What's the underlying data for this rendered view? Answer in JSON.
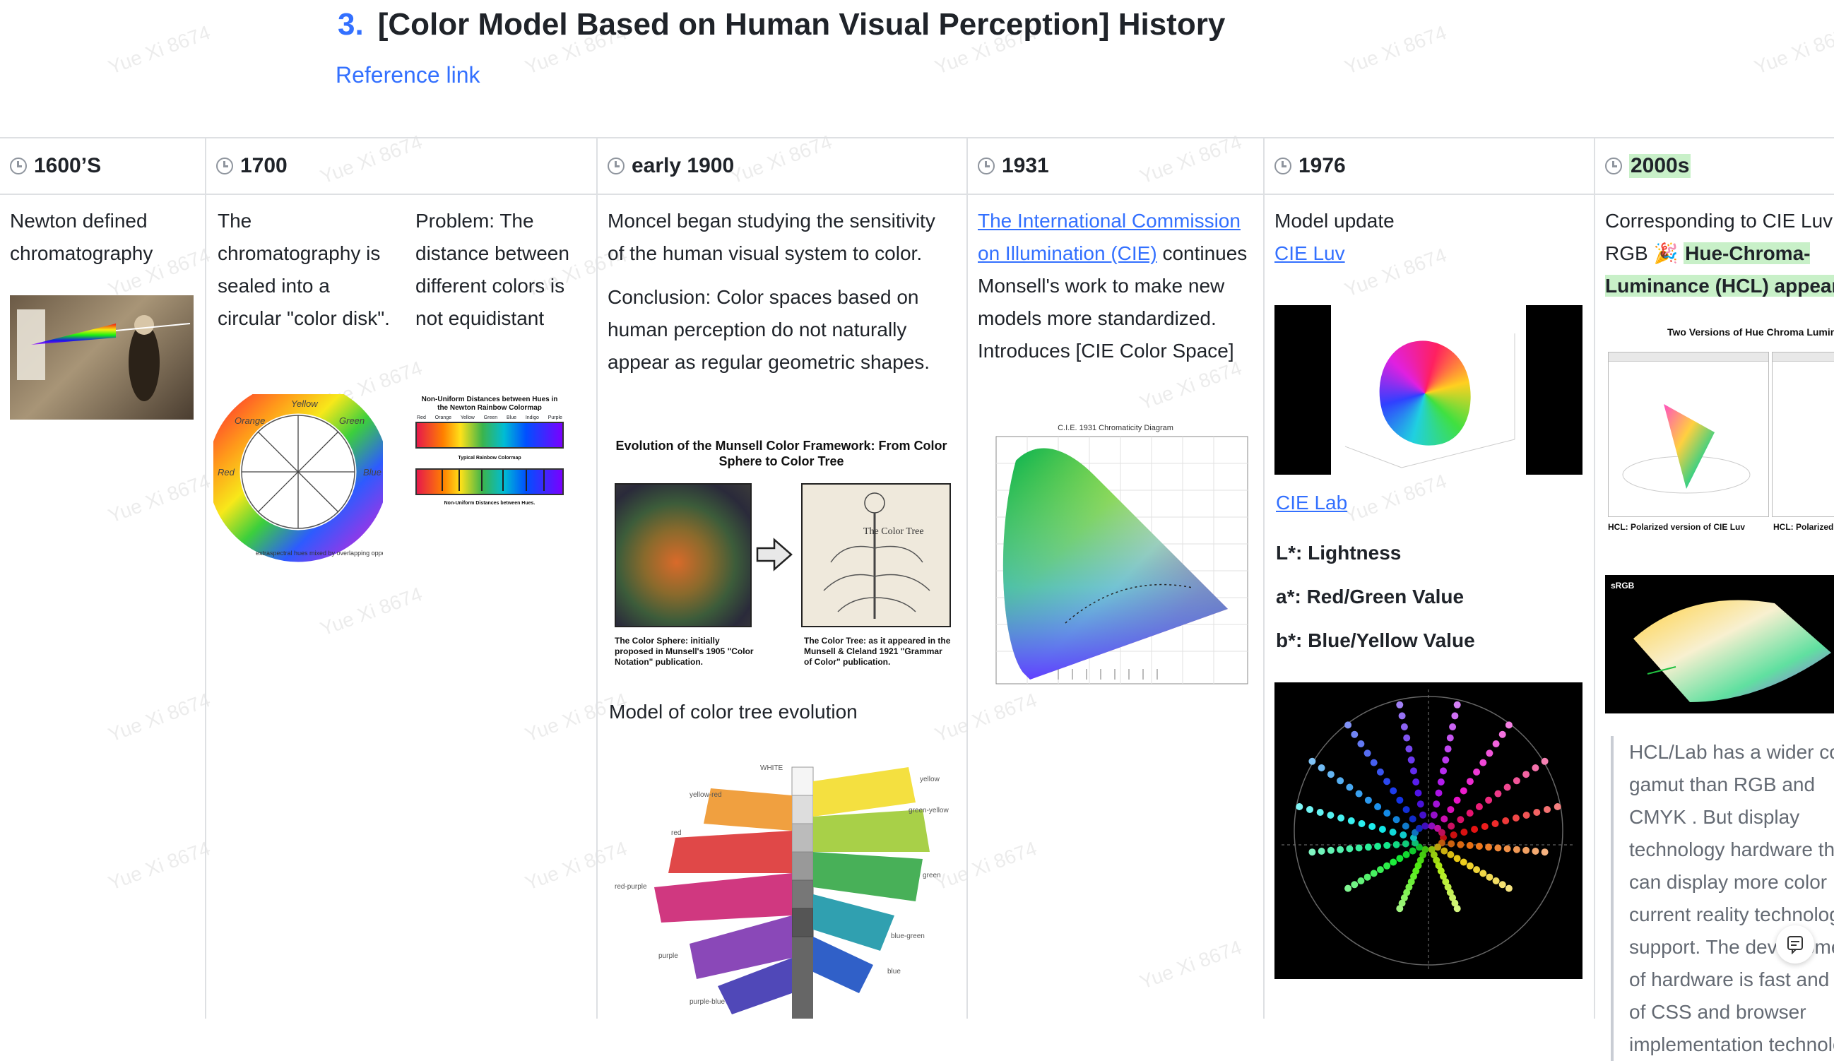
{
  "heading": {
    "number": "3.",
    "title": "[Color Model Based on Human Visual Perception] History"
  },
  "reference_link": "Reference link",
  "columns": [
    {
      "label": "1600’S",
      "text": [
        "Newton defined chromatography"
      ]
    },
    {
      "label": "1700",
      "text_a": "The chromatography is sealed into a circular \"color disk\".",
      "text_b": "Problem: The distance between different colors is not equidistant",
      "figure_colors": [
        "Red",
        "Orange",
        "Yellow",
        "Green",
        "Blue",
        "Indigo",
        "Purple"
      ],
      "figure_title": "Non-Uniform Distances between Hues in the Newton Rainbow Colormap",
      "figure_mid": "Typical Rainbow Colormap",
      "figure_bottom": "Non-Uniform Distances between Hues.",
      "wheel_labels": [
        "Yellow",
        "Green",
        "Blue",
        "Red",
        "Orange"
      ],
      "wheel_note": "extraspectral hues mixed by overlapping opposite spectrum ends"
    },
    {
      "label": "early 1900",
      "p1": "Moncel began studying the sensitivity of the human visual system to color.",
      "p2": "Conclusion: Color spaces based on human perception do not naturally appear as regular geometric shapes.",
      "fig_title": "Evolution of the Munsell Color Framework: From Color Sphere to Color Tree",
      "fig_cap_left": "The Color Sphere: initially proposed in Munsell's 1905 \"Color Notation\" publication.",
      "fig_cap_right": "The Color Tree: as it appeared in the Munsell & Cleland 1921 \"Grammar of Color\" publication.",
      "tree_label": "The Color Tree",
      "p3": "Model of color tree evolution",
      "tree_labels": [
        "WHITE",
        "yellow",
        "yellow-red",
        "green-yellow",
        "red",
        "green",
        "red-purple",
        "blue-green",
        "purple",
        "blue",
        "purple-blue"
      ]
    },
    {
      "label": "1931",
      "link": "The International Commission on Illumination (CIE)",
      "p1": "continues Monsell's work to make new models more standardized.",
      "p2": "Introduces [CIE Color Space]",
      "chart_title": "C.I.E. 1931 Chromaticity Diagram"
    },
    {
      "label": "1976",
      "p1": "Model update",
      "link1": "CIE Luv",
      "link2": "CIE Lab",
      "items": [
        "L*: Lightness",
        "a*: Red/Green Value",
        "b*: Blue/Yellow Value"
      ]
    },
    {
      "label": "2000s",
      "p1": "Corresponding to CIE Luv to RGB",
      "emoji": "🎉",
      "highlight": "Hue-Chroma-Luminance (HCL) appeared",
      "fig_title": "Two Versions of Hue Chroma Luminance",
      "fig_cap1": "HCL: Polarized version of CIE Luv",
      "fig_cap2": "HCL: Polarized version of CIE Lab",
      "srgb": "sRGB",
      "quote": "HCL/Lab has a wider color gamut than RGB and CMYK . But display technology hardware that can display more color ... current reality technology support. The development of hardware is fast and ... of CSS and browser implementation technology"
    }
  ],
  "watermark": "Yue Xi 8674"
}
